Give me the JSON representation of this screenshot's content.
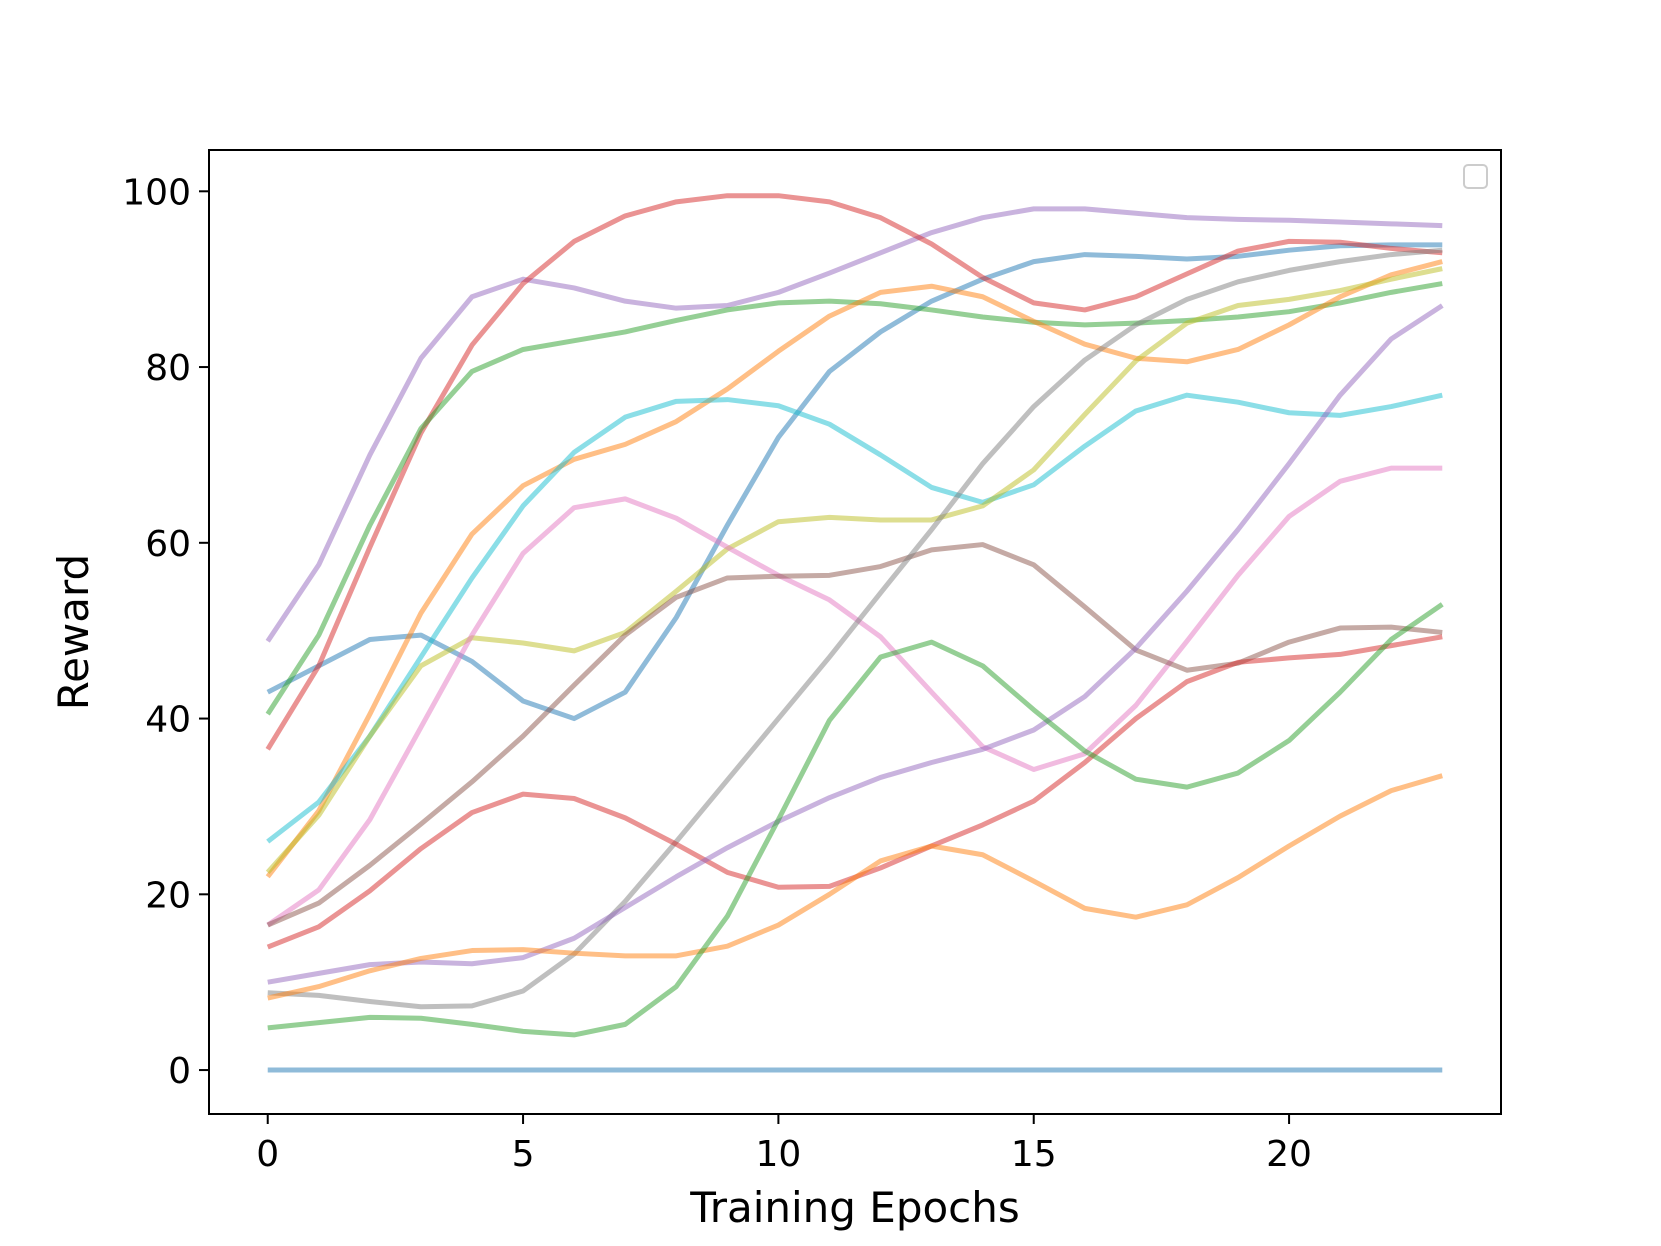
{
  "chart_data": {
    "type": "line",
    "xlabel": "Training Epochs",
    "ylabel": "Reward",
    "x": [
      0,
      1,
      2,
      3,
      4,
      5,
      6,
      7,
      8,
      9,
      10,
      11,
      12,
      13,
      14,
      15,
      16,
      17,
      18,
      19,
      20,
      21,
      22,
      23
    ],
    "xlim": [
      -1.15,
      24.15
    ],
    "xticks": [
      0,
      5,
      10,
      15,
      20
    ],
    "ylim": [
      -5,
      104.7
    ],
    "yticks": [
      0,
      20,
      40,
      60,
      80,
      100
    ],
    "grid": false,
    "alpha": 0.5,
    "line_width": 5,
    "series": [
      {
        "color": "#1f77b4",
        "values": [
          0,
          0,
          0,
          0,
          0,
          0,
          0,
          0,
          0,
          0,
          0,
          0,
          0,
          0,
          0,
          0,
          0,
          0,
          0,
          0,
          0,
          0,
          0,
          0
        ]
      },
      {
        "color": "#1f77b4",
        "values": [
          43,
          46,
          49,
          49.5,
          46.5,
          42,
          40,
          43,
          51.5,
          62,
          72,
          79.5,
          84,
          87.5,
          90,
          92,
          92.8,
          92.6,
          92.3,
          92.6,
          93.3,
          93.8,
          93.9,
          93.9
        ]
      },
      {
        "color": "#9467bd",
        "values": [
          48.8,
          57.5,
          70,
          81,
          88,
          90,
          89,
          87.5,
          86.7,
          87,
          88.5,
          90.7,
          93,
          95.3,
          97,
          98,
          98,
          97.5,
          97,
          96.8,
          96.7,
          96.5,
          96.3,
          96.1
        ]
      },
      {
        "color": "#d62728",
        "values": [
          36.5,
          46,
          59.5,
          72.5,
          82.5,
          89.5,
          94.3,
          97.2,
          98.8,
          99.5,
          99.5,
          98.8,
          97,
          94,
          90.2,
          87.3,
          86.5,
          88,
          90.6,
          93.2,
          94.3,
          94.2,
          93.5,
          93
        ]
      },
      {
        "color": "#2ca02c",
        "values": [
          40.5,
          49.5,
          62,
          73,
          79.5,
          82,
          83,
          84,
          85.3,
          86.5,
          87.3,
          87.5,
          87.2,
          86.5,
          85.7,
          85.1,
          84.8,
          85,
          85.3,
          85.7,
          86.3,
          87.3,
          88.5,
          89.5
        ]
      },
      {
        "color": "#ff7f0e",
        "values": [
          22,
          29.5,
          40.5,
          52,
          61,
          66.5,
          69.5,
          71.2,
          73.8,
          77.5,
          81.8,
          85.8,
          88.5,
          89.2,
          88,
          85.2,
          82.6,
          81,
          80.6,
          82,
          84.8,
          88,
          90.5,
          92
        ]
      },
      {
        "color": "#17becf",
        "values": [
          26,
          30.5,
          38,
          47,
          56,
          64.2,
          70.3,
          74.3,
          76.1,
          76.3,
          75.6,
          73.5,
          70,
          66.3,
          64.6,
          66.6,
          71,
          75,
          76.8,
          76,
          74.8,
          74.5,
          75.5,
          76.8
        ]
      },
      {
        "color": "#bcbd22",
        "values": [
          22.5,
          29,
          38,
          46,
          49.2,
          48.6,
          47.7,
          49.8,
          54.5,
          59.3,
          62.4,
          62.9,
          62.6,
          62.6,
          64.2,
          68.3,
          74.6,
          80.7,
          85,
          87,
          87.7,
          88.7,
          90,
          91.2
        ]
      },
      {
        "color": "#e377c2",
        "values": [
          16.5,
          20.5,
          28.5,
          39,
          49.5,
          58.8,
          64,
          65,
          62.8,
          59.5,
          56.3,
          53.5,
          49.3,
          43,
          36.8,
          34.2,
          36,
          41.5,
          48.8,
          56.3,
          63,
          67,
          68.5,
          68.5
        ]
      },
      {
        "color": "#8c564b",
        "values": [
          16.5,
          19,
          23.3,
          28,
          32.8,
          38,
          43.8,
          49.5,
          53.8,
          56,
          56.2,
          56.3,
          57.3,
          59.2,
          59.8,
          57.5,
          52.7,
          47.8,
          45.5,
          46.3,
          48.7,
          50.3,
          50.4,
          49.8
        ]
      },
      {
        "color": "#7f7f7f",
        "values": [
          8.8,
          8.5,
          7.8,
          7.2,
          7.3,
          9,
          13.2,
          19.2,
          26,
          33,
          40,
          47,
          54.3,
          61.5,
          69,
          75.5,
          80.8,
          84.8,
          87.7,
          89.7,
          91,
          92,
          92.8,
          93.3
        ]
      },
      {
        "color": "#d62728",
        "values": [
          14,
          16.3,
          20.4,
          25.2,
          29.3,
          31.4,
          30.9,
          28.7,
          25.7,
          22.5,
          20.8,
          20.9,
          23,
          25.5,
          27.9,
          30.6,
          35,
          40,
          44.2,
          46.4,
          46.9,
          47.3,
          48.3,
          49.3
        ]
      },
      {
        "color": "#9467bd",
        "values": [
          10,
          11,
          12,
          12.3,
          12.1,
          12.8,
          15,
          18.5,
          22,
          25.3,
          28.3,
          31,
          33.3,
          35,
          36.5,
          38.7,
          42.5,
          48,
          54.5,
          61.5,
          69,
          76.8,
          83.2,
          87
        ]
      },
      {
        "color": "#ff7f0e",
        "values": [
          8.2,
          9.5,
          11.3,
          12.7,
          13.6,
          13.7,
          13.3,
          13,
          13,
          14.1,
          16.5,
          20,
          23.8,
          25.5,
          24.5,
          21.5,
          18.4,
          17.4,
          18.8,
          21.9,
          25.5,
          28.9,
          31.8,
          33.5
        ]
      },
      {
        "color": "#2ca02c",
        "values": [
          4.8,
          5.4,
          6,
          5.9,
          5.2,
          4.4,
          4,
          5.2,
          9.5,
          17.5,
          28.5,
          39.8,
          47,
          48.7,
          46,
          41,
          36.3,
          33.1,
          32.2,
          33.8,
          37.5,
          43,
          49,
          53
        ]
      }
    ]
  }
}
